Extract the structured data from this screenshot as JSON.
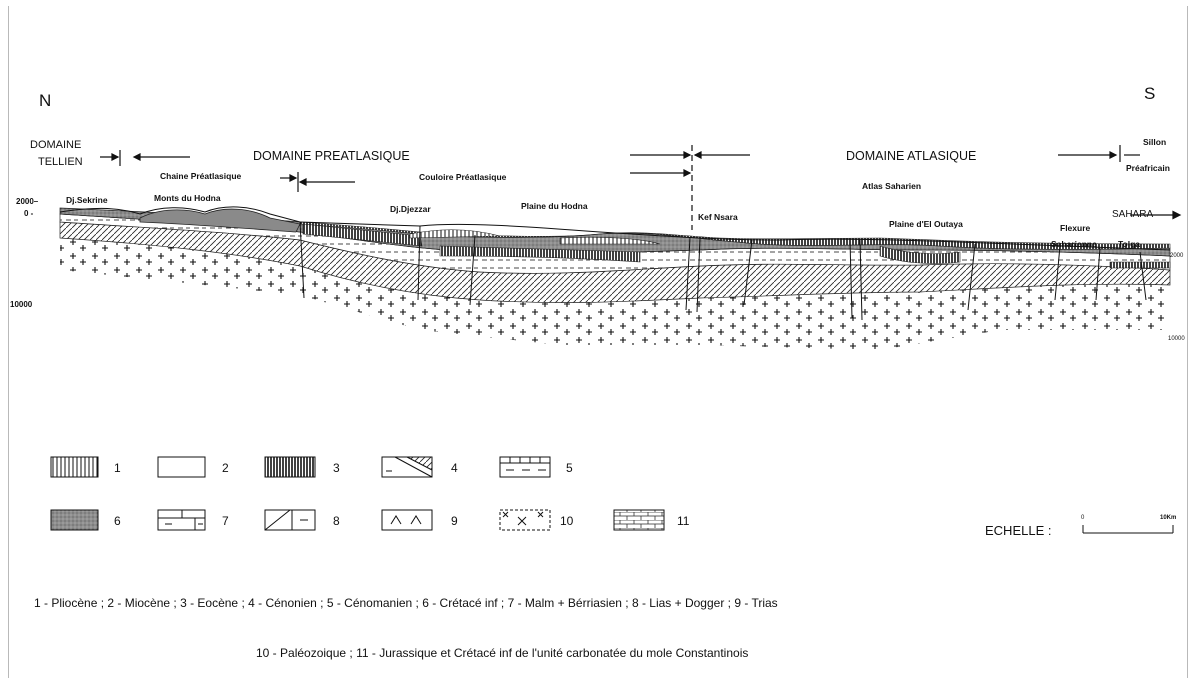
{
  "compass": {
    "north": "N",
    "south": "S"
  },
  "domains": {
    "tellien": [
      "DOMAINE",
      "TELLIEN"
    ],
    "preatlasique": "DOMAINE PREATLASIQUE",
    "atlasique": "DOMAINE ATLASIQUE",
    "sillon": [
      "Sillon",
      "Préafricain"
    ]
  },
  "localities": {
    "chaine_preatlasique": "Chaine Préatlasique",
    "sekrine": "Dj.Sekrine",
    "monts_hodna": "Monts du Hodna",
    "djezzar": "Dj.Djezzar",
    "couloire": "Couloire Préatlasique",
    "plaine_hodna": "Plaine du Hodna",
    "kef_nsara": "Kef Nsara",
    "atlas_saharien": "Atlas Saharien",
    "plaine_outaya": "Plaine d'El Outaya",
    "flexure": [
      "Flexure",
      "Saharienne"
    ],
    "sahara": "SAHARA",
    "tolga": "Tolga"
  },
  "axis": {
    "left_top": "2000–",
    "left_zero": "0 -",
    "left_bottom": "10000",
    "right_top": "2000",
    "right_bottom": "10000"
  },
  "legend": [
    "1",
    "2",
    "3",
    "4",
    "5",
    "6",
    "7",
    "8",
    "9",
    "10",
    "11"
  ],
  "scale": {
    "label": "ECHELLE :",
    "start": "0",
    "end": "10Km"
  },
  "caption": {
    "line1": "1 - Pliocène  ;  2 - Miocène  ;  3 - Eocène  ;  4 - Cénonien  ;  5 - Cénomanien  ;  6 - Crétacé inf  ;  7 - Malm + Bérriasien  ;  8 - Lias + Dogger  ;  9 - Trias",
    "line2": "10 - Paléozoique  ;  11 - Jurassique et Crétacé inf de l'unité carbonatée du mole Constantinois"
  }
}
